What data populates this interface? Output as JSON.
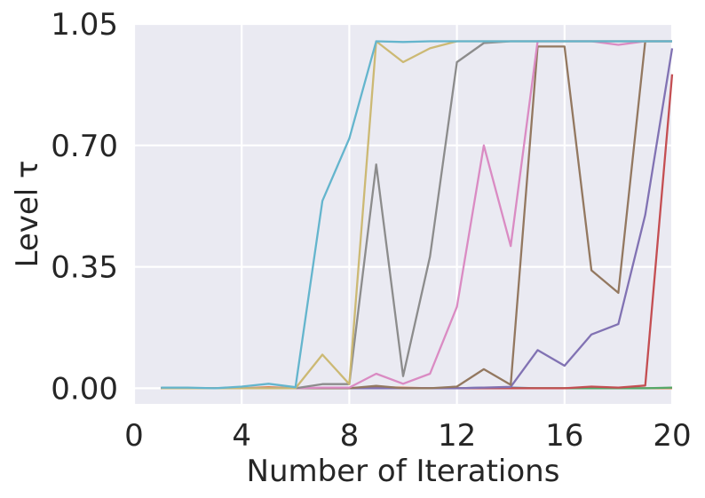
{
  "chart_data": {
    "type": "line",
    "xlabel": "Number of Iterations",
    "ylabel": "Level τ",
    "xlim": [
      0,
      20
    ],
    "ylim": [
      -0.045,
      1.05
    ],
    "xticks": [
      "0",
      "4",
      "8",
      "12",
      "16",
      "20"
    ],
    "yticks": [
      "0.00",
      "0.35",
      "0.70",
      "1.05"
    ],
    "grid": true,
    "legend": "none",
    "x": [
      1,
      2,
      3,
      4,
      5,
      6,
      7,
      8,
      9,
      10,
      11,
      12,
      13,
      14,
      15,
      16,
      17,
      18,
      19,
      20
    ],
    "series": [
      {
        "color": "#4c72b0",
        "values": [
          0,
          0,
          0,
          0,
          0,
          0,
          0,
          0,
          0,
          0,
          0,
          0,
          0.002,
          0.002,
          0,
          0,
          0,
          0,
          0,
          0
        ]
      },
      {
        "color": "#dd8452",
        "values": [
          0,
          0,
          0,
          0,
          0.003,
          0,
          0,
          0,
          0.003,
          0.002,
          0,
          0,
          0,
          0,
          0,
          0,
          0,
          0,
          0,
          0
        ]
      },
      {
        "color": "#55a868",
        "values": [
          0,
          0,
          0,
          0,
          0,
          0,
          0,
          0,
          0,
          0,
          0,
          0,
          0,
          0,
          0,
          0,
          0,
          0,
          0,
          0.002
        ]
      },
      {
        "color": "#c44e52",
        "values": [
          0,
          0,
          0,
          0,
          0,
          0,
          0,
          0,
          0,
          0,
          0,
          0,
          0,
          0,
          0,
          0,
          0.005,
          0.002,
          0.008,
          0.905
        ]
      },
      {
        "color": "#8172b3",
        "values": [
          0,
          0,
          0,
          0,
          0,
          0,
          0,
          0,
          0,
          0,
          0,
          0,
          0.002,
          0.004,
          0.11,
          0.065,
          0.155,
          0.185,
          0.5,
          0.98
        ]
      },
      {
        "color": "#937860",
        "values": [
          0,
          0,
          0,
          0,
          0,
          0,
          0,
          0,
          0.007,
          0,
          0,
          0.005,
          0.055,
          0.01,
          0.985,
          0.985,
          0.34,
          0.275,
          1.0,
          1.0
        ]
      },
      {
        "color": "#da8bc3",
        "values": [
          0,
          0,
          0,
          0,
          0,
          0,
          0.002,
          0.002,
          0.042,
          0.013,
          0.042,
          0.235,
          0.7,
          0.41,
          1.0,
          1.0,
          1.0,
          0.99,
          1.0,
          1.0
        ]
      },
      {
        "color": "#8c8c8c",
        "values": [
          0,
          0,
          0,
          0,
          0,
          0,
          0.012,
          0.012,
          0.645,
          0.035,
          0.38,
          0.94,
          0.995,
          1.0,
          1.0,
          1.0,
          1.0,
          1.0,
          1.0,
          1.0
        ]
      },
      {
        "color": "#ccb974",
        "values": [
          0,
          0,
          0,
          0,
          0,
          0,
          0.097,
          0.012,
          1.0,
          0.94,
          0.98,
          1.0,
          1.0,
          1.0,
          1.0,
          1.0,
          1.0,
          1.0,
          1.0,
          1.0
        ]
      },
      {
        "color": "#64b5cd",
        "values": [
          0.002,
          0.002,
          0,
          0.005,
          0.013,
          0.003,
          0.54,
          0.72,
          1.0,
          0.998,
          1.0,
          1.0,
          1.0,
          1.0,
          1.0,
          1.0,
          1.0,
          1.0,
          1.0,
          1.0
        ]
      }
    ]
  }
}
